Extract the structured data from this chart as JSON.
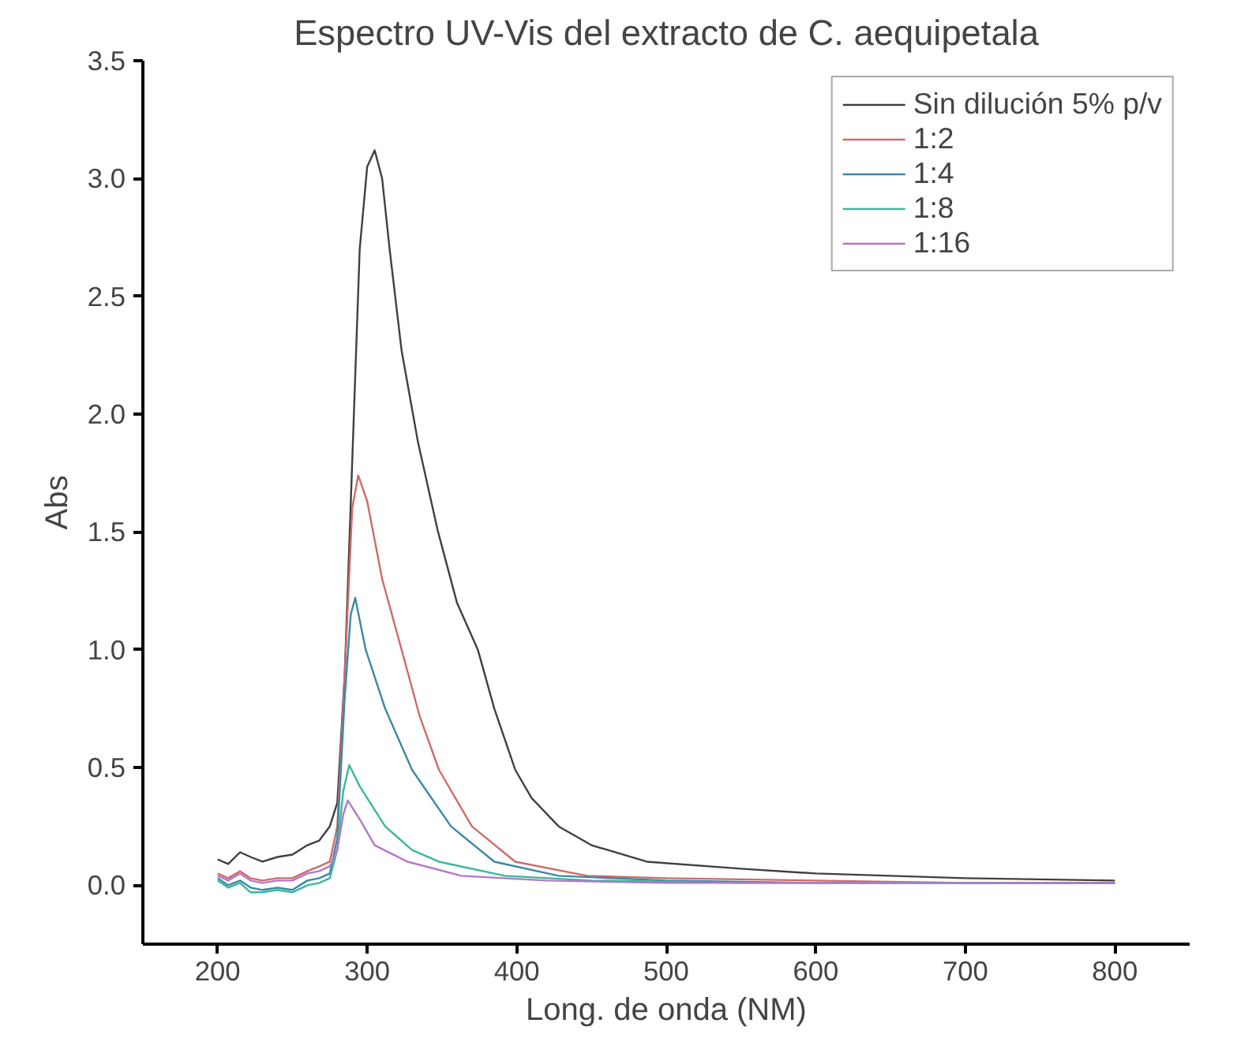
{
  "chart_data": {
    "type": "line",
    "title": "Espectro UV-Vis del extracto de C. aequipetala",
    "xlabel": "Long. de onda (NM)",
    "ylabel": "Abs",
    "xlim": [
      150,
      850
    ],
    "ylim": [
      -0.25,
      3.5
    ],
    "xticks": [
      200,
      300,
      400,
      500,
      600,
      700,
      800
    ],
    "yticks": [
      {
        "value": 0,
        "label": "0.0"
      },
      {
        "value": 0.5,
        "label": "0.5"
      },
      {
        "value": 1,
        "label": "1.0"
      },
      {
        "value": 1.5,
        "label": "1.5"
      },
      {
        "value": 2,
        "label": "2.0"
      },
      {
        "value": 2.5,
        "label": "2.5"
      },
      {
        "value": 3,
        "label": "3.0"
      },
      {
        "value": 3.5,
        "label": "3.5"
      }
    ],
    "grid": false,
    "legend": "top right",
    "marker": "none",
    "line_style": "solid",
    "series": [
      {
        "name": "Sin dilución 5% p/v",
        "color": "#404040",
        "x": [
          200,
          207,
          215,
          222,
          230,
          240,
          250,
          260,
          268,
          275,
          280,
          285,
          290,
          295,
          300,
          305,
          310,
          315,
          323,
          334,
          347,
          360,
          374,
          385,
          399,
          410,
          428,
          450,
          487,
          550,
          600,
          700,
          800
        ],
        "values": [
          0.11,
          0.09,
          0.14,
          0.12,
          0.1,
          0.12,
          0.13,
          0.17,
          0.19,
          0.25,
          0.35,
          0.9,
          1.8,
          2.7,
          3.05,
          3.12,
          3.0,
          2.7,
          2.27,
          1.88,
          1.51,
          1.2,
          1.0,
          0.75,
          0.49,
          0.37,
          0.25,
          0.17,
          0.1,
          0.07,
          0.05,
          0.03,
          0.02
        ]
      },
      {
        "name": "1:2",
        "color": "#d06a6a",
        "x": [
          200,
          207,
          215,
          222,
          230,
          240,
          250,
          260,
          268,
          275,
          280,
          285,
          290,
          294,
          300,
          310,
          323,
          335,
          348,
          370,
          399,
          447,
          500,
          600,
          700,
          800
        ],
        "values": [
          0.05,
          0.03,
          0.06,
          0.03,
          0.02,
          0.03,
          0.03,
          0.06,
          0.08,
          0.1,
          0.25,
          0.9,
          1.6,
          1.74,
          1.63,
          1.3,
          1.0,
          0.72,
          0.49,
          0.25,
          0.1,
          0.04,
          0.03,
          0.02,
          0.01,
          0.01
        ]
      },
      {
        "name": "1:4",
        "color": "#3a88a8",
        "x": [
          200,
          207,
          215,
          222,
          230,
          240,
          250,
          260,
          268,
          275,
          280,
          285,
          289,
          292,
          299,
          312,
          330,
          356,
          385,
          428,
          500,
          600,
          700,
          800
        ],
        "values": [
          0.03,
          0.0,
          0.02,
          -0.01,
          -0.02,
          -0.01,
          -0.02,
          0.02,
          0.03,
          0.05,
          0.2,
          0.8,
          1.15,
          1.22,
          1.0,
          0.75,
          0.49,
          0.25,
          0.1,
          0.04,
          0.02,
          0.01,
          0.01,
          0.01
        ]
      },
      {
        "name": "1:8",
        "color": "#3ab898",
        "x": [
          200,
          207,
          215,
          222,
          230,
          240,
          250,
          260,
          268,
          275,
          280,
          284,
          288,
          295,
          312,
          330,
          348,
          392,
          450,
          550,
          700,
          800
        ],
        "values": [
          0.02,
          -0.01,
          0.01,
          -0.03,
          -0.03,
          -0.02,
          -0.03,
          0.0,
          0.01,
          0.03,
          0.15,
          0.4,
          0.51,
          0.42,
          0.25,
          0.15,
          0.1,
          0.04,
          0.02,
          0.01,
          0.01,
          0.01
        ]
      },
      {
        "name": "1:16",
        "color": "#b478c8",
        "x": [
          200,
          207,
          215,
          222,
          230,
          240,
          250,
          260,
          268,
          275,
          280,
          284,
          287,
          295,
          305,
          327,
          363,
          420,
          500,
          650,
          800
        ],
        "values": [
          0.04,
          0.02,
          0.05,
          0.02,
          0.01,
          0.02,
          0.02,
          0.05,
          0.06,
          0.08,
          0.15,
          0.3,
          0.36,
          0.28,
          0.17,
          0.1,
          0.04,
          0.02,
          0.01,
          0.01,
          0.01
        ]
      }
    ]
  }
}
